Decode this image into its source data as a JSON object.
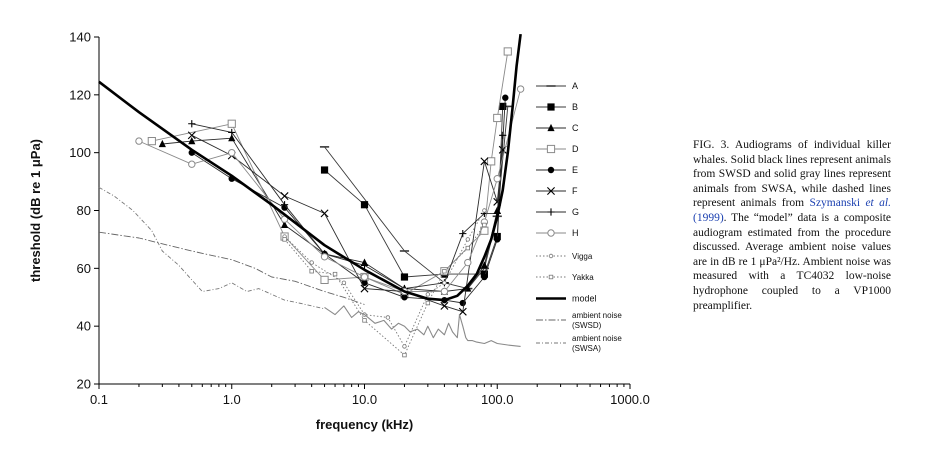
{
  "figure_number": "FIG. 3.",
  "caption": {
    "part1": "Audiograms of individual killer whales. Solid black lines represent animals from SWSD and solid gray lines represent animals from SWSA, while dashed lines represent animals from ",
    "ref_author": "Szymanski ",
    "ref_etal": "et al.",
    "ref_year": " (1999)",
    "part2": ". The “model” data is a composite audiogram estimated from the procedure discussed. Average ambient noise values are in dB re 1 μPa²/Hz. Ambient noise was measured with a TC4032 low-noise hydrophone coupled to a VP1000 preamplifier."
  },
  "chart_data": {
    "type": "line",
    "xlabel": "frequency (kHz)",
    "ylabel": "threshold (dB re 1 μPa)",
    "xscale": "log",
    "xlim": [
      0.1,
      1000
    ],
    "ylim": [
      20,
      140
    ],
    "xticks": [
      {
        "v": 0.1,
        "label": "0.1"
      },
      {
        "v": 1,
        "label": "1.0"
      },
      {
        "v": 10,
        "label": "10.0"
      },
      {
        "v": 100,
        "label": "100.0"
      },
      {
        "v": 1000,
        "label": "1000.0"
      }
    ],
    "yticks": [
      20,
      40,
      60,
      80,
      100,
      120,
      140
    ],
    "grid": false,
    "legend_position": "right",
    "series": [
      {
        "name": "A",
        "marker": "dash",
        "color": "#3a3a3a",
        "dash": "",
        "x": [
          5,
          20,
          40,
          60,
          80,
          100,
          120
        ],
        "y": [
          102,
          66,
          55,
          53,
          60,
          78,
          116
        ]
      },
      {
        "name": "B",
        "marker": "square_filled",
        "color": "#3a3a3a",
        "dash": "",
        "x": [
          5,
          10,
          20,
          40,
          80,
          100,
          110
        ],
        "y": [
          94,
          82,
          57,
          58,
          58,
          71,
          116
        ]
      },
      {
        "name": "C",
        "marker": "triangle",
        "color": "#2a2a2a",
        "dash": "",
        "x": [
          0.3,
          0.5,
          1,
          2.5,
          5,
          10,
          20,
          40,
          60,
          80,
          100
        ],
        "y": [
          103,
          104,
          105,
          75,
          65,
          62,
          53,
          52,
          53,
          61,
          80
        ]
      },
      {
        "name": "D",
        "marker": "square_open",
        "color": "#8a8a8a",
        "dash": "",
        "x": [
          0.25,
          1,
          2.5,
          5,
          10,
          20,
          40,
          80,
          90,
          100,
          120
        ],
        "y": [
          104,
          110,
          71,
          56,
          57,
          51,
          59,
          73,
          97,
          112,
          135
        ]
      },
      {
        "name": "E",
        "marker": "circle_filled",
        "color": "#2a2a2a",
        "dash": "",
        "x": [
          0.5,
          1,
          2.5,
          5,
          10,
          20,
          40,
          55,
          80,
          100,
          115
        ],
        "y": [
          100,
          91,
          81,
          65,
          55,
          50,
          49,
          48,
          57,
          70,
          119
        ]
      },
      {
        "name": "F",
        "marker": "x",
        "color": "#2a2a2a",
        "dash": "",
        "x": [
          0.5,
          1,
          2.5,
          5,
          10,
          20,
          40,
          55,
          80,
          100,
          110
        ],
        "y": [
          106,
          99,
          85,
          79,
          53,
          52,
          47,
          45,
          97,
          83,
          101
        ]
      },
      {
        "name": "G",
        "marker": "plus",
        "color": "#2a2a2a",
        "dash": "",
        "x": [
          0.5,
          1,
          2.5,
          5,
          10,
          20,
          40,
          55,
          80,
          100,
          110
        ],
        "y": [
          110,
          107,
          82,
          65,
          61,
          53,
          55,
          72,
          79,
          79,
          106
        ]
      },
      {
        "name": "H",
        "marker": "circle_open",
        "color": "#8a8a8a",
        "dash": "",
        "x": [
          0.2,
          0.5,
          1,
          2.5,
          5,
          10,
          20,
          40,
          60,
          80,
          100,
          150
        ],
        "y": [
          104,
          96,
          100,
          77,
          64,
          57,
          52,
          52,
          62,
          76,
          91,
          122
        ]
      },
      {
        "name": "Vigga",
        "marker": "small_circle",
        "color": "#777777",
        "dash": "1.5,2",
        "x": [
          2.5,
          4,
          7,
          10,
          15,
          20,
          30,
          40,
          60,
          80
        ],
        "y": [
          71,
          62,
          55,
          44,
          43,
          33,
          51,
          55,
          70,
          80
        ]
      },
      {
        "name": "Yakka",
        "marker": "small_square",
        "color": "#777777",
        "dash": "1.5,2",
        "x": [
          2.5,
          4,
          6,
          10,
          20,
          30,
          40,
          60,
          80
        ],
        "y": [
          70,
          59,
          58,
          42,
          30,
          48,
          59,
          67,
          75
        ]
      },
      {
        "name": "model",
        "marker": "none",
        "color": "#000000",
        "dash": "",
        "width": 2.6,
        "x": [
          0.1,
          0.2,
          0.5,
          1,
          2,
          5,
          10,
          20,
          30,
          40,
          50,
          60,
          70,
          80,
          90,
          100,
          110,
          120,
          130,
          140,
          150
        ],
        "y": [
          124.5,
          114,
          101,
          92,
          82,
          68,
          59.5,
          52,
          49.5,
          49,
          50.5,
          54,
          58,
          64,
          70,
          78,
          87,
          100,
          115,
          130,
          142
        ]
      },
      {
        "name": "ambient noise (SWSD)",
        "marker": "none",
        "color": "#666666",
        "dash": "7,2,1.5,2",
        "width": 0.9,
        "x": [
          0.1,
          0.2,
          0.3,
          0.5,
          0.7,
          1,
          1.5,
          2,
          3,
          5,
          7,
          10
        ],
        "y": [
          72.5,
          70.5,
          68.5,
          66,
          64.5,
          63,
          60,
          57,
          55.5,
          52,
          50,
          47.5
        ]
      },
      {
        "name": "ambient noise (SWSA)",
        "marker": "none",
        "color": "#777777",
        "dash": "4,2,1,2",
        "width": 0.9,
        "x": [
          0.1,
          0.13,
          0.18,
          0.25,
          0.3,
          0.4,
          0.5,
          0.6,
          0.8,
          1,
          1.3,
          1.6,
          2,
          2.5,
          3.2,
          4,
          5
        ],
        "y": [
          88,
          85,
          80,
          73,
          66,
          61,
          56,
          52,
          53,
          55,
          52,
          53,
          51,
          49,
          48,
          47,
          46
        ]
      },
      {
        "name": "ambient noise measured",
        "marker": "none",
        "color": "#8a8a8a",
        "dash": "",
        "width": 1.1,
        "legend": false,
        "x": [
          5,
          6,
          7,
          8,
          9,
          10,
          12,
          14,
          16,
          18,
          20,
          22,
          25,
          28,
          30,
          33,
          36,
          40,
          43,
          46,
          50,
          52,
          55,
          58,
          60,
          65,
          70,
          80,
          90,
          100,
          120,
          150
        ],
        "y": [
          46.5,
          44,
          47,
          43,
          45,
          44,
          41,
          42,
          39,
          41,
          40,
          38,
          39,
          37,
          40,
          36,
          39,
          37,
          41,
          38,
          36,
          44,
          40,
          36,
          35,
          35,
          34.5,
          34,
          35,
          34,
          33.5,
          33
        ]
      }
    ]
  }
}
